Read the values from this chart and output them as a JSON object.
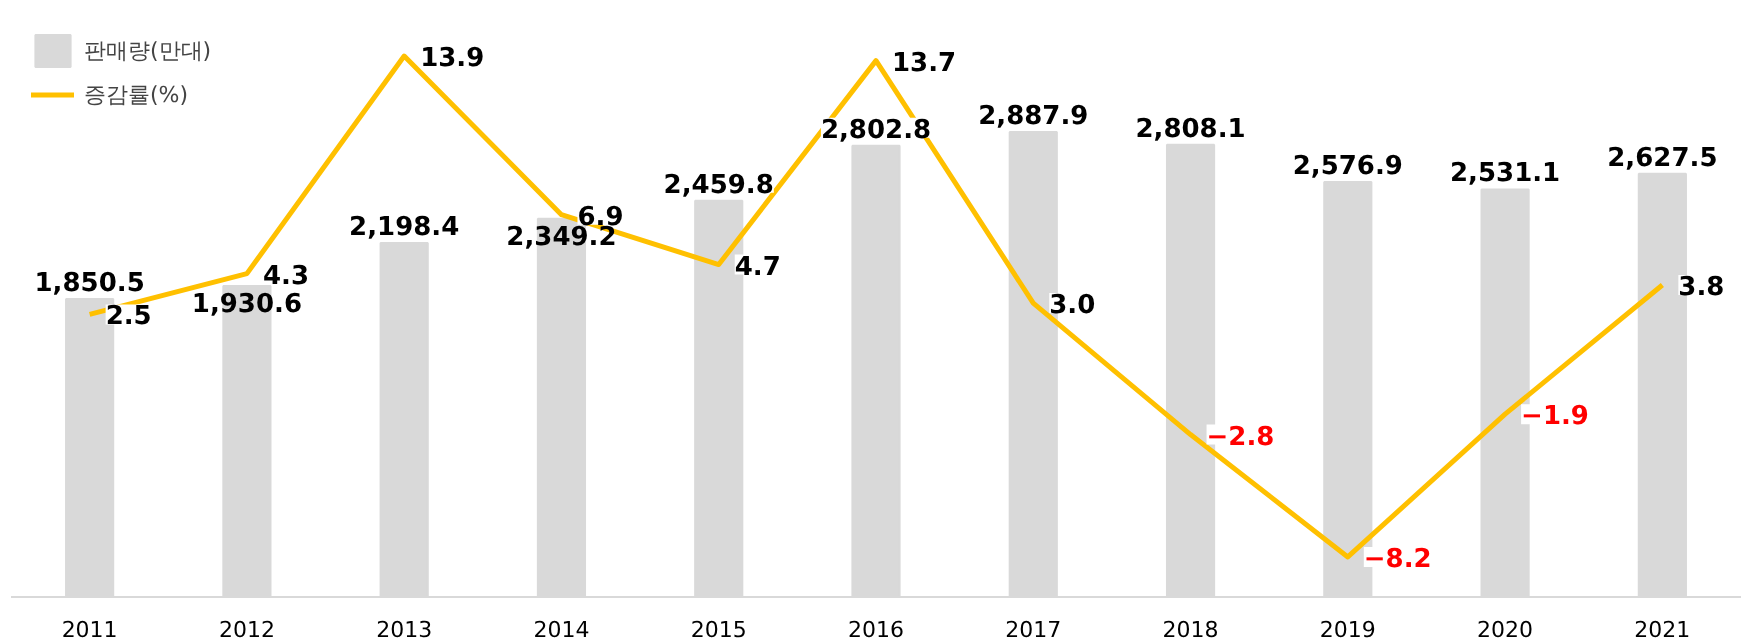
{
  "chart_data": {
    "type": "bar",
    "categories": [
      "2011",
      "2012",
      "2013",
      "2014",
      "2015",
      "2016",
      "2017",
      "2018",
      "2019",
      "2020",
      "2021"
    ],
    "legend": "top left",
    "grid": false,
    "tick_labels": "x",
    "series": [
      {
        "name": "판매량(만대)",
        "color": "#d9d9d9",
        "values": [
          1850.5,
          1930.6,
          2198.4,
          2349.2,
          2459.8,
          2802.8,
          2887.9,
          2808.1,
          2576.9,
          2531.1,
          2627.5
        ],
        "value_labels": [
          "1,850.5",
          "1,930.6",
          "2,198.4",
          "2,349.2",
          "2,459.8",
          "2,802.8",
          "2,887.9",
          "2,808.1",
          "2,576.9",
          "2,531.1",
          "2,627.5"
        ]
      },
      {
        "name": "증감률(%)",
        "type": "line",
        "axis": "y2",
        "color": "#ffc000",
        "values": [
          2.5,
          4.3,
          13.9,
          6.9,
          4.7,
          13.7,
          3.0,
          -2.8,
          -8.2,
          -1.9,
          3.8
        ],
        "value_labels": [
          "2.5",
          "4.3",
          "13.9",
          "6.9",
          "4.7",
          "13.7",
          "3.0",
          "−2.8",
          "−8.2",
          "−1.9",
          "3.8"
        ]
      }
    ]
  }
}
